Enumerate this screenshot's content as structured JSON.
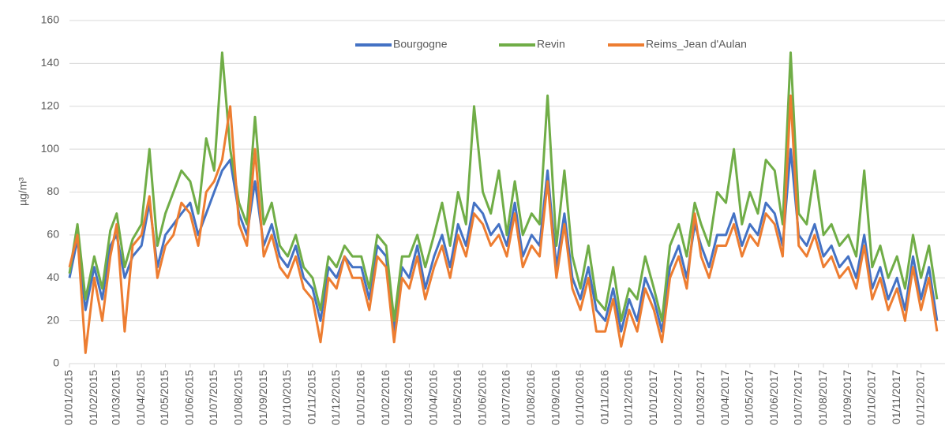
{
  "chart_data": {
    "type": "line",
    "y_label": "µg/m³",
    "x": [
      "01/01/2015",
      "11/01/2015",
      "21/01/2015",
      "01/02/2015",
      "11/02/2015",
      "21/02/2015",
      "01/03/2015",
      "11/03/2015",
      "21/03/2015",
      "01/04/2015",
      "11/04/2015",
      "21/04/2015",
      "01/05/2015",
      "11/05/2015",
      "21/05/2015",
      "01/06/2015",
      "11/06/2015",
      "21/06/2015",
      "01/07/2015",
      "11/07/2015",
      "21/07/2015",
      "01/08/2015",
      "11/08/2015",
      "21/08/2015",
      "01/09/2015",
      "11/09/2015",
      "21/09/2015",
      "01/10/2015",
      "11/10/2015",
      "21/10/2015",
      "01/11/2015",
      "11/11/2015",
      "21/11/2015",
      "01/12/2015",
      "11/12/2015",
      "21/12/2015",
      "01/01/2016",
      "11/01/2016",
      "21/01/2016",
      "01/02/2016",
      "11/02/2016",
      "21/02/2016",
      "01/03/2016",
      "11/03/2016",
      "21/03/2016",
      "01/04/2016",
      "11/04/2016",
      "21/04/2016",
      "01/05/2016",
      "11/05/2016",
      "21/05/2016",
      "01/06/2016",
      "11/06/2016",
      "21/06/2016",
      "01/07/2016",
      "11/07/2016",
      "21/07/2016",
      "01/08/2016",
      "11/08/2016",
      "21/08/2016",
      "01/09/2016",
      "11/09/2016",
      "21/09/2016",
      "01/10/2016",
      "11/10/2016",
      "21/10/2016",
      "01/11/2016",
      "11/11/2016",
      "21/11/2016",
      "01/12/2016",
      "11/12/2016",
      "21/12/2016",
      "01/01/2017",
      "11/01/2017",
      "21/01/2017",
      "01/02/2017",
      "11/02/2017",
      "21/02/2017",
      "01/03/2017",
      "11/03/2017",
      "21/03/2017",
      "01/04/2017",
      "11/04/2017",
      "21/04/2017",
      "01/05/2017",
      "11/05/2017",
      "21/05/2017",
      "01/06/2017",
      "11/06/2017",
      "21/06/2017",
      "01/07/2017",
      "11/07/2017",
      "21/07/2017",
      "01/08/2017",
      "11/08/2017",
      "21/08/2017",
      "01/09/2017",
      "11/09/2017",
      "21/09/2017",
      "01/10/2017",
      "11/10/2017",
      "21/10/2017",
      "01/11/2017",
      "11/11/2017",
      "21/11/2017",
      "01/12/2017",
      "11/12/2017",
      "21/12/2017"
    ],
    "series": [
      {
        "name": "Bourgogne",
        "color": "#4472c4",
        "values": [
          40,
          58,
          25,
          45,
          30,
          55,
          60,
          40,
          50,
          55,
          75,
          45,
          60,
          65,
          70,
          75,
          60,
          70,
          80,
          90,
          95,
          70,
          60,
          85,
          55,
          65,
          50,
          45,
          55,
          40,
          35,
          20,
          45,
          40,
          50,
          45,
          45,
          30,
          55,
          50,
          15,
          45,
          40,
          55,
          35,
          50,
          60,
          45,
          65,
          55,
          75,
          70,
          60,
          65,
          55,
          75,
          50,
          60,
          55,
          90,
          45,
          70,
          40,
          30,
          45,
          25,
          20,
          35,
          15,
          30,
          20,
          40,
          30,
          15,
          45,
          55,
          40,
          65,
          55,
          45,
          60,
          60,
          70,
          55,
          65,
          60,
          75,
          70,
          55,
          100,
          60,
          55,
          65,
          50,
          55,
          45,
          50,
          40,
          60,
          35,
          45,
          30,
          40,
          25,
          50,
          30,
          45,
          20
        ]
      },
      {
        "name": "Revin",
        "color": "#70ad47",
        "values": [
          42,
          65,
          30,
          50,
          35,
          62,
          70,
          45,
          58,
          65,
          100,
          55,
          70,
          80,
          90,
          85,
          70,
          105,
          90,
          145,
          100,
          75,
          65,
          115,
          65,
          75,
          55,
          50,
          60,
          45,
          40,
          25,
          50,
          45,
          55,
          50,
          50,
          35,
          60,
          55,
          20,
          50,
          50,
          60,
          45,
          60,
          75,
          55,
          80,
          65,
          120,
          80,
          70,
          90,
          60,
          85,
          60,
          70,
          65,
          125,
          55,
          90,
          50,
          35,
          55,
          30,
          25,
          45,
          20,
          35,
          30,
          50,
          35,
          20,
          55,
          65,
          50,
          75,
          65,
          55,
          80,
          75,
          100,
          65,
          80,
          70,
          95,
          90,
          65,
          145,
          70,
          65,
          90,
          60,
          65,
          55,
          60,
          50,
          90,
          45,
          55,
          40,
          50,
          35,
          60,
          40,
          55,
          30
        ]
      },
      {
        "name": "Reims_Jean d'Aulan",
        "color": "#ed7d31",
        "values": [
          45,
          60,
          5,
          40,
          20,
          50,
          65,
          15,
          55,
          60,
          78,
          40,
          55,
          60,
          75,
          70,
          55,
          80,
          85,
          95,
          120,
          65,
          55,
          100,
          50,
          60,
          45,
          40,
          50,
          35,
          30,
          10,
          40,
          35,
          50,
          40,
          40,
          25,
          50,
          45,
          10,
          40,
          35,
          50,
          30,
          45,
          55,
          40,
          60,
          50,
          70,
          65,
          55,
          60,
          50,
          70,
          45,
          55,
          50,
          85,
          40,
          65,
          35,
          25,
          40,
          15,
          15,
          30,
          8,
          25,
          15,
          35,
          25,
          10,
          40,
          50,
          35,
          70,
          50,
          40,
          55,
          55,
          65,
          50,
          60,
          55,
          70,
          65,
          50,
          125,
          55,
          50,
          60,
          45,
          50,
          40,
          45,
          35,
          55,
          30,
          40,
          25,
          35,
          20,
          45,
          25,
          40,
          15
        ]
      }
    ],
    "xlim": [
      "01/01/2015",
      "31/12/2017"
    ],
    "xticks": [
      "01/01/2015",
      "01/02/2015",
      "01/03/2015",
      "01/04/2015",
      "01/05/2015",
      "01/06/2015",
      "01/07/2015",
      "01/08/2015",
      "01/09/2015",
      "01/10/2015",
      "01/11/2015",
      "01/12/2015",
      "01/01/2016",
      "01/02/2016",
      "01/03/2016",
      "01/04/2016",
      "01/05/2016",
      "01/06/2016",
      "01/07/2016",
      "01/08/2016",
      "01/09/2016",
      "01/10/2016",
      "01/11/2016",
      "01/12/2016",
      "01/01/2017",
      "01/02/2017",
      "01/03/2017",
      "01/04/2017",
      "01/05/2017",
      "01/06/2017",
      "01/07/2017",
      "01/08/2017",
      "01/09/2017",
      "01/10/2017",
      "01/11/2017",
      "01/12/2017"
    ],
    "ylim": [
      0,
      160
    ],
    "yticks": [
      0,
      20,
      40,
      60,
      80,
      100,
      120,
      140,
      160
    ],
    "grid": true
  }
}
